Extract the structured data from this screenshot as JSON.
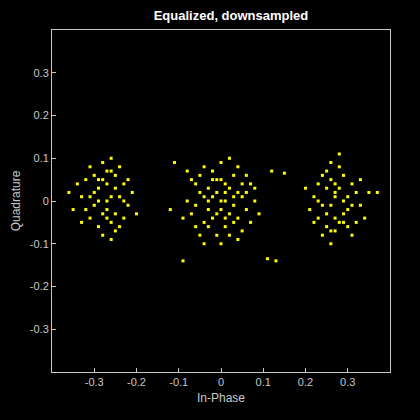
{
  "chart_data": {
    "type": "scatter",
    "title": "Equalized, downsampled",
    "x_label": "In-Phase",
    "y_label": "Quadrature",
    "color": "#ffff00",
    "marker": "square",
    "grid": false,
    "xlim": [
      -0.4,
      0.4
    ],
    "ylim": [
      -0.4,
      0.4
    ],
    "xticks": [
      -0.3,
      -0.2,
      -0.1,
      0,
      0.1,
      0.2,
      0.3
    ],
    "yticks": [
      -0.3,
      -0.2,
      -0.1,
      0,
      0.1,
      0.2,
      0.3
    ],
    "points": [
      [
        -0.27,
        0.0
      ],
      [
        -0.3,
        0.02
      ],
      [
        -0.25,
        -0.03
      ],
      [
        -0.28,
        0.05
      ],
      [
        -0.24,
        0.01
      ],
      [
        -0.31,
        -0.04
      ],
      [
        -0.26,
        0.07
      ],
      [
        -0.29,
        -0.06
      ],
      [
        -0.23,
        0.04
      ],
      [
        -0.33,
        0.01
      ],
      [
        -0.27,
        -0.02
      ],
      [
        -0.22,
        -0.01
      ],
      [
        -0.28,
        0.09
      ],
      [
        -0.25,
        0.03
      ],
      [
        -0.3,
        -0.01
      ],
      [
        -0.26,
        -0.05
      ],
      [
        -0.32,
        0.05
      ],
      [
        -0.21,
        0.02
      ],
      [
        -0.29,
        0.03
      ],
      [
        -0.24,
        -0.06
      ],
      [
        -0.27,
        0.04
      ],
      [
        -0.35,
        -0.02
      ],
      [
        -0.26,
        0.1
      ],
      [
        -0.31,
        0.08
      ],
      [
        -0.23,
        -0.04
      ],
      [
        -0.28,
        -0.08
      ],
      [
        -0.2,
        -0.03
      ],
      [
        -0.33,
        -0.05
      ],
      [
        -0.25,
        0.06
      ],
      [
        -0.29,
        0.0
      ],
      [
        -0.27,
        -0.04
      ],
      [
        -0.24,
        0.08
      ],
      [
        -0.32,
        -0.02
      ],
      [
        -0.26,
        0.01
      ],
      [
        -0.3,
        0.06
      ],
      [
        -0.22,
        0.05
      ],
      [
        -0.28,
        -0.03
      ],
      [
        -0.36,
        0.02
      ],
      [
        -0.25,
        -0.07
      ],
      [
        -0.34,
        0.04
      ],
      [
        -0.27,
        0.07
      ],
      [
        -0.23,
        0.0
      ],
      [
        -0.31,
        0.01
      ],
      [
        -0.26,
        -0.09
      ],
      [
        -0.29,
        0.05
      ],
      [
        0.27,
        0.01
      ],
      [
        0.3,
        -0.02
      ],
      [
        0.25,
        0.03
      ],
      [
        0.28,
        -0.05
      ],
      [
        0.24,
        -0.01
      ],
      [
        0.31,
        0.04
      ],
      [
        0.26,
        -0.07
      ],
      [
        0.29,
        0.06
      ],
      [
        0.23,
        -0.04
      ],
      [
        0.33,
        -0.01
      ],
      [
        0.27,
        0.02
      ],
      [
        0.22,
        0.01
      ],
      [
        0.28,
        0.11
      ],
      [
        0.25,
        -0.03
      ],
      [
        0.3,
        0.01
      ],
      [
        0.26,
        0.05
      ],
      [
        0.32,
        -0.05
      ],
      [
        0.21,
        -0.02
      ],
      [
        0.29,
        -0.03
      ],
      [
        0.24,
        0.06
      ],
      [
        0.27,
        -0.04
      ],
      [
        0.35,
        0.02
      ],
      [
        0.26,
        -0.1
      ],
      [
        0.31,
        -0.08
      ],
      [
        0.23,
        0.04
      ],
      [
        0.28,
        0.08
      ],
      [
        0.2,
        0.03
      ],
      [
        0.33,
        0.05
      ],
      [
        0.25,
        -0.06
      ],
      [
        0.29,
        0.0
      ],
      [
        0.27,
        0.04
      ],
      [
        0.24,
        -0.08
      ],
      [
        0.32,
        0.02
      ],
      [
        0.26,
        -0.01
      ],
      [
        0.3,
        -0.06
      ],
      [
        0.22,
        -0.05
      ],
      [
        0.28,
        0.03
      ],
      [
        0.37,
        0.02
      ],
      [
        0.25,
        0.07
      ],
      [
        0.34,
        -0.04
      ],
      [
        0.27,
        -0.07
      ],
      [
        0.23,
        0.0
      ],
      [
        0.31,
        -0.01
      ],
      [
        0.26,
        0.09
      ],
      [
        0.29,
        -0.05
      ],
      [
        0.0,
        0.0
      ],
      [
        0.02,
        0.03
      ],
      [
        -0.03,
        -0.02
      ],
      [
        0.04,
        -0.04
      ],
      [
        -0.01,
        0.05
      ],
      [
        0.05,
        0.01
      ],
      [
        -0.05,
        0.02
      ],
      [
        0.01,
        -0.06
      ],
      [
        -0.02,
        0.07
      ],
      [
        0.03,
        0.06
      ],
      [
        -0.04,
        -0.05
      ],
      [
        0.06,
        -0.02
      ],
      [
        -0.06,
        -0.01
      ],
      [
        0.0,
        0.09
      ],
      [
        0.02,
        -0.03
      ],
      [
        -0.03,
        0.03
      ],
      [
        0.07,
        0.04
      ],
      [
        -0.07,
        0.05
      ],
      [
        0.01,
        0.02
      ],
      [
        -0.01,
        -0.03
      ],
      [
        0.04,
        0.08
      ],
      [
        -0.04,
        0.08
      ],
      [
        0.05,
        -0.07
      ],
      [
        -0.05,
        -0.08
      ],
      [
        0.0,
        -0.1
      ],
      [
        0.08,
        0.0
      ],
      [
        -0.08,
        0.0
      ],
      [
        0.03,
        -0.01
      ],
      [
        -0.02,
        0.01
      ],
      [
        0.01,
        0.04
      ],
      [
        -0.03,
        -0.06
      ],
      [
        0.06,
        0.06
      ],
      [
        -0.06,
        0.04
      ],
      [
        0.02,
        0.1
      ],
      [
        -0.01,
        -0.08
      ],
      [
        0.09,
        -0.03
      ],
      [
        -0.09,
        -0.04
      ],
      [
        0.04,
        0.02
      ],
      [
        -0.04,
        0.01
      ],
      [
        0.0,
        0.05
      ],
      [
        0.02,
        -0.08
      ],
      [
        -0.02,
        -0.04
      ],
      [
        0.05,
        0.04
      ],
      [
        -0.05,
        0.06
      ],
      [
        0.03,
        -0.05
      ],
      [
        -0.07,
        -0.03
      ],
      [
        0.07,
        -0.05
      ],
      [
        0.01,
        0.0
      ],
      [
        -0.01,
        0.02
      ],
      [
        0.0,
        -0.02
      ],
      [
        0.03,
        0.01
      ],
      [
        -0.03,
        0.0
      ],
      [
        0.06,
        0.02
      ],
      [
        -0.02,
        0.05
      ],
      [
        0.01,
        -0.04
      ],
      [
        -0.06,
        -0.06
      ],
      [
        0.08,
        0.03
      ],
      [
        -0.08,
        0.07
      ],
      [
        0.04,
        -0.09
      ],
      [
        -0.04,
        -0.1
      ],
      [
        -0.09,
        -0.14
      ],
      [
        0.11,
        -0.135
      ],
      [
        0.13,
        -0.14
      ],
      [
        -0.11,
        0.09
      ],
      [
        0.15,
        0.065
      ],
      [
        -0.12,
        -0.02
      ],
      [
        0.12,
        0.07
      ]
    ]
  }
}
